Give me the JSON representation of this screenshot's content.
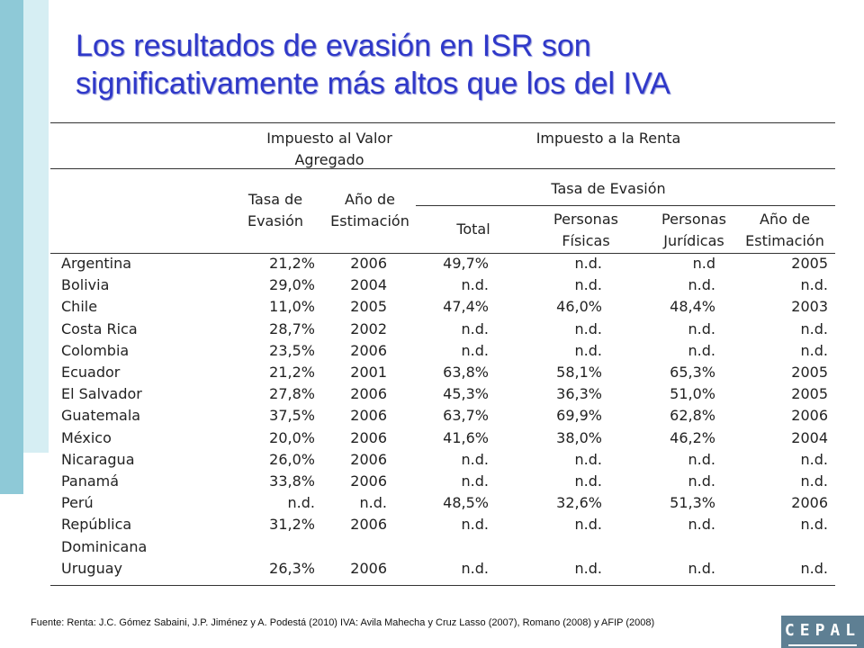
{
  "title": {
    "line1": "Los resultados de evasión en ISR son",
    "line2": "significativamente más altos que los del IVA"
  },
  "table": {
    "group_headers": {
      "iva_line1": "Impuesto al Valor",
      "iva_line2": "Agregado",
      "renta": "Impuesto a la Renta",
      "tasa_evasion": "Tasa de Evasión"
    },
    "col_headers": [
      {
        "l1": "Tasa de",
        "l2": "Evasión"
      },
      {
        "l1": "Año de",
        "l2": "Estimación"
      },
      {
        "l1": "Total",
        "l2": ""
      },
      {
        "l1": "Personas",
        "l2": "Físicas"
      },
      {
        "l1": "Personas",
        "l2": "Jurídicas"
      },
      {
        "l1": "Año de",
        "l2": "Estimación"
      }
    ],
    "rows": [
      {
        "country": "Argentina",
        "cells": [
          "21,2%",
          "2006",
          "49,7%",
          "n.d.",
          "n.d",
          "2005"
        ]
      },
      {
        "country": "Bolivia",
        "cells": [
          "29,0%",
          "2004",
          "n.d.",
          "n.d.",
          "n.d.",
          "n.d."
        ]
      },
      {
        "country": "Chile",
        "cells": [
          "11,0%",
          "2005",
          "47,4%",
          "46,0%",
          "48,4%",
          "2003"
        ]
      },
      {
        "country": "Costa Rica",
        "cells": [
          "28,7%",
          "2002",
          "n.d.",
          "n.d.",
          "n.d.",
          "n.d."
        ]
      },
      {
        "country": "Colombia",
        "cells": [
          "23,5%",
          "2006",
          "n.d.",
          "n.d.",
          "n.d.",
          "n.d."
        ]
      },
      {
        "country": "Ecuador",
        "cells": [
          "21,2%",
          "2001",
          "63,8%",
          "58,1%",
          "65,3%",
          "2005"
        ]
      },
      {
        "country": "El Salvador",
        "cells": [
          "27,8%",
          "2006",
          "45,3%",
          "36,3%",
          "51,0%",
          "2005"
        ]
      },
      {
        "country": "Guatemala",
        "cells": [
          "37,5%",
          "2006",
          "63,7%",
          "69,9%",
          "62,8%",
          "2006"
        ]
      },
      {
        "country": "México",
        "cells": [
          "20,0%",
          "2006",
          "41,6%",
          "38,0%",
          "46,2%",
          "2004"
        ]
      },
      {
        "country": "Nicaragua",
        "cells": [
          "26,0%",
          "2006",
          "n.d.",
          "n.d.",
          "n.d.",
          "n.d."
        ]
      },
      {
        "country": "Panamá",
        "cells": [
          "33,8%",
          "2006",
          "n.d.",
          "n.d.",
          "n.d.",
          "n.d."
        ]
      },
      {
        "country": "Perú",
        "cells": [
          "n.d.",
          "n.d.",
          "48,5%",
          "32,6%",
          "51,3%",
          "2006"
        ]
      },
      {
        "country": "República",
        "cells": [
          "31,2%",
          "2006",
          "n.d.",
          "n.d.",
          "n.d.",
          "n.d."
        ]
      },
      {
        "country": "Dominicana",
        "cells": [
          "",
          "",
          "",
          "",
          "",
          ""
        ]
      },
      {
        "country": "Uruguay",
        "cells": [
          "26,3%",
          "2006",
          "n.d.",
          "n.d.",
          "n.d.",
          "n.d."
        ]
      }
    ]
  },
  "footer": "Fuente: Renta:   J.C. Gómez Sabaini, J.P. Jiménez y A. Podestá (2010) IVA: Avila Mahecha y Cruz Lasso (2007),  Romano (2008)  y AFIP (2008)",
  "logo": "CEPAL"
}
